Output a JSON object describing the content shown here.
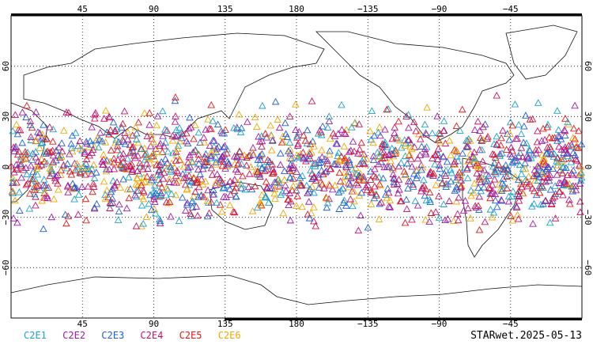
{
  "map": {
    "projection": "equirectangular",
    "lon_range": [
      0,
      360
    ],
    "lat_range": [
      -90,
      90
    ],
    "central_longitude": 180,
    "top_lon_ticks": [
      "45",
      "90",
      "135",
      "180",
      "−135",
      "−90",
      "−45"
    ],
    "bottom_lon_ticks": [
      "45",
      "90",
      "135",
      "180",
      "−135",
      "−90",
      "−45"
    ],
    "left_lat_ticks": [
      "60",
      "30",
      "0",
      "−30",
      "−60"
    ],
    "right_lat_ticks": [
      "60",
      "30",
      "0",
      "−30",
      "−60"
    ],
    "grid": "dotted",
    "observation_band_lat": [
      -45,
      45
    ],
    "marker_shape": "open-triangle"
  },
  "legend": [
    {
      "name": "C2E1",
      "color": "#1aa3c9"
    },
    {
      "name": "C2E2",
      "color": "#a01aa8"
    },
    {
      "name": "C2E3",
      "color": "#1f5fd6"
    },
    {
      "name": "C2E4",
      "color": "#c8106a"
    },
    {
      "name": "C2E5",
      "color": "#e01818"
    },
    {
      "name": "C2E6",
      "color": "#f0a800"
    }
  ],
  "footer": {
    "label": "STARwet.2025-05-13"
  }
}
